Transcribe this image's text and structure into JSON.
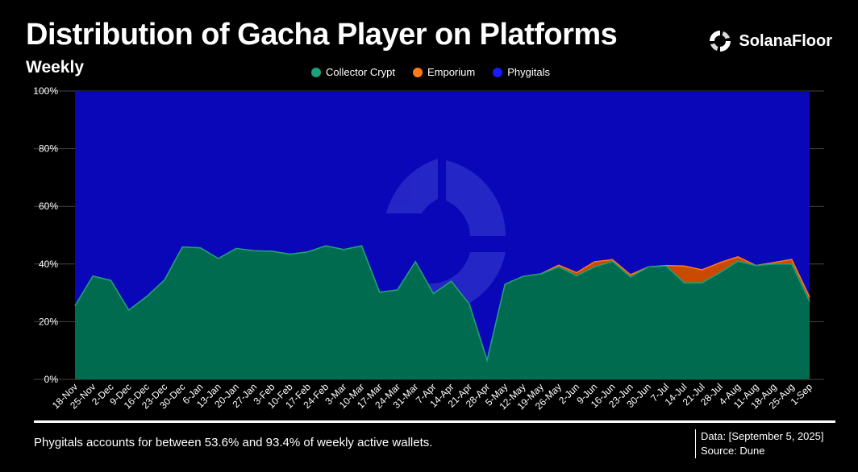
{
  "header": {
    "title": "Distribution of Gacha Player on Platforms",
    "subtitle": "Weekly",
    "brand": "SolanaFloor"
  },
  "footer": {
    "note": "Phygitals accounts for between 53.6% and 93.4% of weekly active wallets.",
    "data_date": "Data: [September 5, 2025]",
    "source": "Source: Dune"
  },
  "colors": {
    "collector_crypt": "#006b4f",
    "collector_crypt_line": "#1aa37a",
    "emporium": "#c94a00",
    "emporium_line": "#ff7a1a",
    "phygitals": "#0a07b8",
    "background": "#000000"
  },
  "chart_data": {
    "type": "area",
    "stacked": true,
    "x": [
      "18-Nov",
      "25-Nov",
      "2-Dec",
      "9-Dec",
      "16-Dec",
      "23-Dec",
      "30-Dec",
      "6-Jan",
      "13-Jan",
      "20-Jan",
      "27-Jan",
      "3-Feb",
      "10-Feb",
      "17-Feb",
      "24-Feb",
      "3-Mar",
      "10-Mar",
      "17-Mar",
      "24-Mar",
      "31-Mar",
      "7-Apr",
      "14-Apr",
      "21-Apr",
      "28-Apr",
      "5-May",
      "12-May",
      "19-May",
      "26-May",
      "2-Jun",
      "9-Jun",
      "16-Jun",
      "23-Jun",
      "30-Jun",
      "7-Jul",
      "14-Jul",
      "21-Jul",
      "28-Jul",
      "4-Aug",
      "11-Aug",
      "18-Aug",
      "25-Aug",
      "1-Sep"
    ],
    "series": [
      {
        "name": "Collector Crypt",
        "values": [
          25.5,
          35.8,
          34.3,
          24.0,
          28.7,
          34.5,
          45.9,
          45.6,
          41.9,
          45.4,
          44.6,
          44.4,
          43.4,
          44.2,
          46.3,
          45.0,
          46.3,
          30.2,
          31.0,
          40.8,
          29.7,
          34.0,
          26.2,
          6.6,
          33.0,
          35.7,
          36.6,
          39.0,
          36.0,
          39.0,
          40.9,
          35.5,
          39.0,
          39.3,
          33.5,
          33.5,
          37.0,
          41.0,
          39.5,
          40.0,
          40.0,
          27.0
        ]
      },
      {
        "name": "Emporium",
        "values": [
          0,
          0,
          0,
          0,
          0,
          0,
          0,
          0,
          0,
          0,
          0,
          0,
          0,
          0,
          0,
          0,
          0,
          0,
          0,
          0,
          0,
          0,
          0,
          0,
          0,
          0,
          0,
          0.6,
          1.0,
          1.8,
          0.6,
          0.8,
          0,
          0.2,
          5.8,
          4.5,
          3.5,
          1.5,
          0,
          0.5,
          1.6,
          1.5
        ]
      },
      {
        "name": "Phygitals",
        "values": [
          74.5,
          64.2,
          65.7,
          76.0,
          71.3,
          65.5,
          54.1,
          54.4,
          58.1,
          54.6,
          55.4,
          55.6,
          56.6,
          55.8,
          53.7,
          55.0,
          53.7,
          69.8,
          69.0,
          59.2,
          70.3,
          66.0,
          73.8,
          93.4,
          67.0,
          64.3,
          63.4,
          60.4,
          63.0,
          59.2,
          58.5,
          63.7,
          61.0,
          60.5,
          60.7,
          62.0,
          59.5,
          57.5,
          60.5,
          59.5,
          58.4,
          71.5
        ]
      }
    ],
    "y_ticks": [
      "0%",
      "20%",
      "40%",
      "60%",
      "80%",
      "100%"
    ],
    "ylim": [
      0,
      100
    ],
    "grid": true,
    "legend_position": "top-center"
  }
}
